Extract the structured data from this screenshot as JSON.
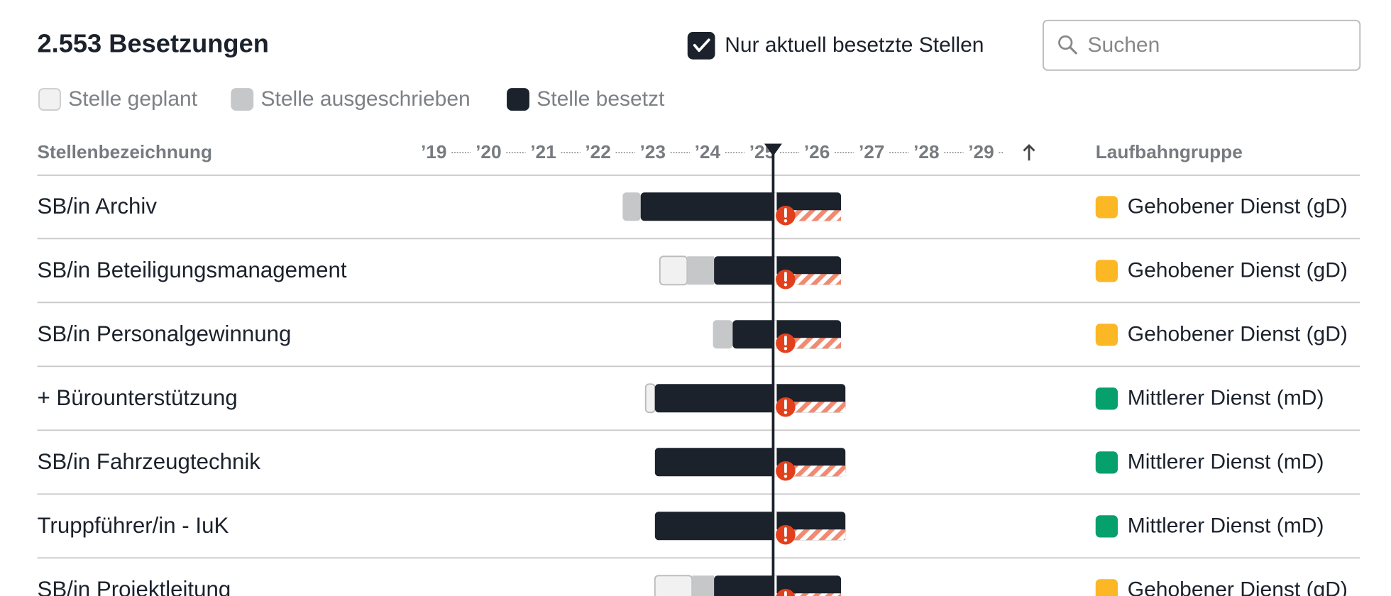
{
  "header": {
    "count_title": "2.553 Besetzungen",
    "filter_label": "Nur aktuell besetzte Stellen",
    "filter_checked": true,
    "search_placeholder": "Suchen"
  },
  "legend": [
    {
      "label": "Stelle geplant",
      "color": "#f1f1f1"
    },
    {
      "label": "Stelle ausgeschrieben",
      "color": "#c6c7c9"
    },
    {
      "label": "Stelle besetzt",
      "color": "#1b222c"
    }
  ],
  "columns": {
    "title": "Stellenbezeichnung",
    "group": "Laufbahngruppe"
  },
  "timeline": {
    "xlim": [
      2019,
      2029
    ],
    "xticks": [
      {
        "value": 2019,
        "label": "’19"
      },
      {
        "value": 2020,
        "label": "’20"
      },
      {
        "value": 2021,
        "label": "’21"
      },
      {
        "value": 2022,
        "label": "’22"
      },
      {
        "value": 2023,
        "label": "’23"
      },
      {
        "value": 2024,
        "label": "’24"
      },
      {
        "value": 2025,
        "label": "’25"
      },
      {
        "value": 2026,
        "label": "’26"
      },
      {
        "value": 2027,
        "label": "’27"
      },
      {
        "value": 2028,
        "label": "’28"
      },
      {
        "value": 2029,
        "label": "’29"
      }
    ],
    "today": 2025.2
  },
  "rows": [
    {
      "title": "SB/in Archiv",
      "group": "Gehobener Dienst (gD)",
      "group_color": "#fbb724",
      "planned": null,
      "advertised": 2022.45,
      "filled": 2022.78,
      "end": 2026.44
    },
    {
      "title": "SB/in Beteiligungsmanagement",
      "group": "Gehobener Dienst (gD)",
      "group_color": "#fbb724",
      "planned": 2023.13,
      "advertised": 2023.63,
      "filled": 2024.12,
      "end": 2026.44
    },
    {
      "title": "SB/in Personalgewinnung",
      "group": "Gehobener Dienst (gD)",
      "group_color": "#fbb724",
      "planned": null,
      "advertised": 2024.1,
      "filled": 2024.46,
      "end": 2026.44
    },
    {
      "title": "+ Bürounterstützung",
      "group": "Mittlerer Dienst (mD)",
      "group_color": "#05a06c",
      "planned": 2022.87,
      "advertised": null,
      "filled": 2023.04,
      "end": 2026.52
    },
    {
      "title": "SB/in Fahrzeugtechnik",
      "group": "Mittlerer Dienst (mD)",
      "group_color": "#05a06c",
      "planned": null,
      "advertised": null,
      "filled": 2023.04,
      "end": 2026.52
    },
    {
      "title": "Truppführer/in - IuK",
      "group": "Mittlerer Dienst (mD)",
      "group_color": "#05a06c",
      "planned": null,
      "advertised": null,
      "filled": 2023.04,
      "end": 2026.52
    },
    {
      "title": "SB/in Projektleitung",
      "group": "Gehobener Dienst (gD)",
      "group_color": "#fbb724",
      "planned": 2023.04,
      "advertised": 2023.72,
      "filled": 2024.12,
      "end": 2026.44
    }
  ]
}
